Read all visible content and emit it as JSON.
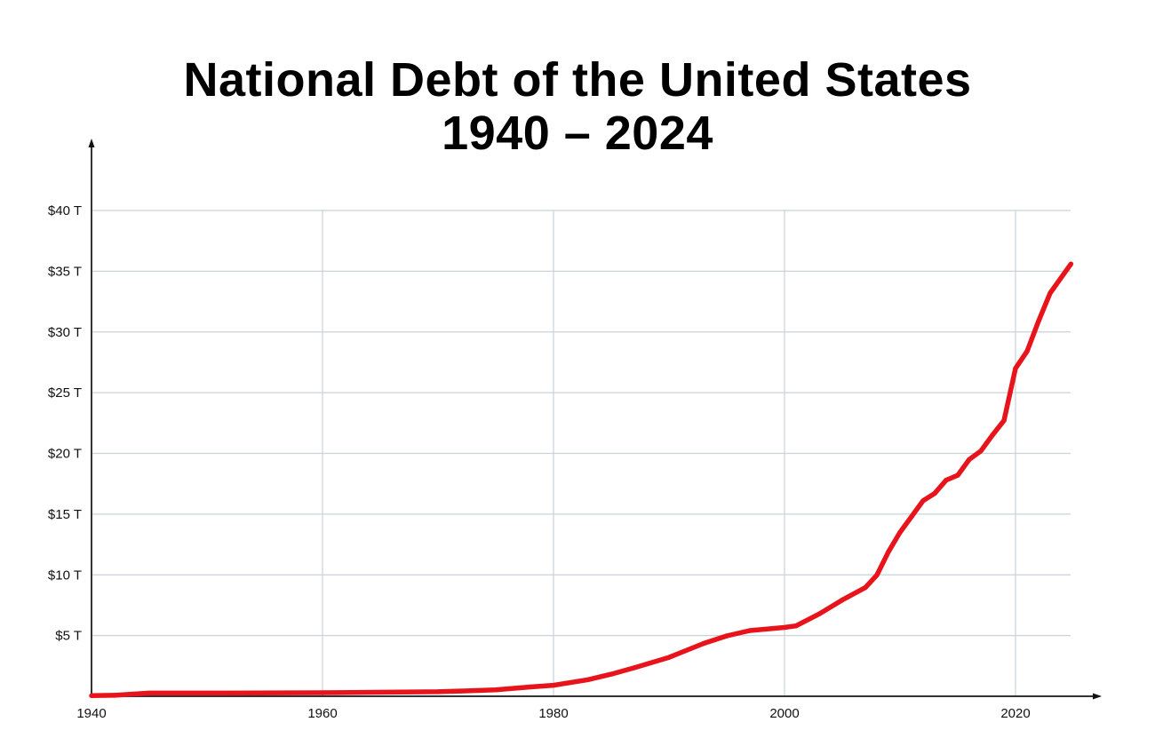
{
  "chart_data": {
    "type": "line",
    "title": "National Debt of the United States",
    "subtitle": "1940 – 2024",
    "xlabel": "",
    "ylabel": "",
    "xlim": [
      1940,
      2025
    ],
    "ylim": [
      0,
      40
    ],
    "x_ticks": [
      1940,
      1960,
      1980,
      2000,
      2020
    ],
    "x_tick_labels": [
      "1940",
      "1960",
      "1980",
      "2000",
      "2020"
    ],
    "y_ticks": [
      5,
      10,
      15,
      20,
      25,
      30,
      35,
      40
    ],
    "y_tick_labels": [
      "$5 T",
      "$10 T",
      "$15 T",
      "$20 T",
      "$25 T",
      "$30 T",
      "$35 T",
      "$40 T"
    ],
    "grid": true,
    "line_color": "#e8141c",
    "grid_color": "#c9d3d8",
    "series": [
      {
        "x": [
          1940,
          1942,
          1945,
          1950,
          1960,
          1970,
          1972,
          1975,
          1978,
          1980,
          1983,
          1985,
          1987,
          1990,
          1993,
          1995,
          1997,
          2000,
          2001,
          2003,
          2005,
          2007,
          2008,
          2009,
          2010,
          2011,
          2012,
          2013,
          2014,
          2015,
          2016,
          2017,
          2018,
          2019,
          2020,
          2021,
          2022,
          2023,
          2024.8
        ],
        "y": [
          0.05,
          0.08,
          0.26,
          0.26,
          0.29,
          0.37,
          0.43,
          0.53,
          0.77,
          0.91,
          1.37,
          1.82,
          2.35,
          3.2,
          4.35,
          4.97,
          5.41,
          5.67,
          5.8,
          6.78,
          7.93,
          8.95,
          9.98,
          11.9,
          13.5,
          14.8,
          16.1,
          16.7,
          17.8,
          18.2,
          19.5,
          20.2,
          21.5,
          22.7,
          27.0,
          28.4,
          30.9,
          33.2,
          35.6
        ]
      }
    ]
  }
}
